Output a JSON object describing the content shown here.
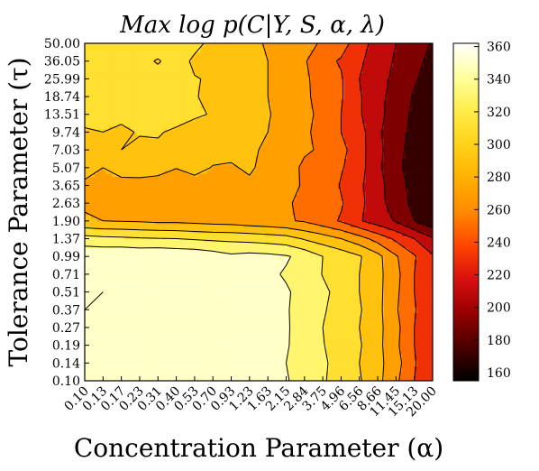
{
  "chart_data": {
    "type": "heatmap",
    "title": "Max log p(C|Y, S, α, λ)",
    "xlabel": "Concentration Parameter (α)",
    "ylabel": "Tolerance Parameter (τ)",
    "x_ticks": [
      "0.10",
      "0.13",
      "0.17",
      "0.23",
      "0.31",
      "0.40",
      "0.53",
      "0.70",
      "0.93",
      "1.23",
      "1.63",
      "2.15",
      "2.84",
      "3.75",
      "4.96",
      "6.56",
      "8.66",
      "11.45",
      "15.13",
      "20.00"
    ],
    "y_ticks": [
      "0.10",
      "0.14",
      "0.19",
      "0.27",
      "0.37",
      "0.51",
      "0.71",
      "0.99",
      "1.37",
      "1.90",
      "2.63",
      "3.65",
      "5.07",
      "7.03",
      "9.74",
      "13.51",
      "18.74",
      "25.99",
      "36.05",
      "50.00"
    ],
    "values": [
      [
        360,
        354,
        356,
        356,
        357,
        356,
        357,
        350,
        348,
        346,
        345,
        341,
        335,
        322,
        312,
        302,
        286,
        264,
        240,
        222
      ],
      [
        357,
        358,
        355,
        355,
        358,
        358,
        356,
        348,
        347,
        345,
        344,
        340,
        332,
        324,
        310,
        300,
        286,
        268,
        242,
        222
      ],
      [
        360,
        358,
        357,
        357,
        356,
        353,
        353,
        349,
        350,
        346,
        343,
        341,
        335,
        321,
        311,
        302,
        286,
        264,
        240,
        222
      ],
      [
        354,
        358,
        360,
        357,
        355,
        357,
        353,
        348,
        346,
        345,
        345,
        341,
        336,
        320,
        310,
        300,
        286,
        266,
        240,
        222
      ],
      [
        360,
        356,
        356,
        355,
        359,
        357,
        357,
        349,
        346,
        347,
        346,
        341,
        335,
        322,
        312,
        302,
        286,
        262,
        242,
        222
      ],
      [
        358,
        360,
        356,
        358,
        356,
        354,
        355,
        349,
        346,
        346,
        344,
        342,
        334,
        325,
        312,
        300,
        286,
        264,
        240,
        222
      ],
      [
        360,
        355,
        357,
        358,
        354,
        358,
        355,
        348,
        344,
        345,
        344,
        338,
        336,
        319,
        310,
        300,
        286,
        266,
        240,
        222
      ],
      [
        357,
        357,
        358,
        356,
        358,
        356,
        355,
        350,
        344,
        347,
        345,
        342,
        334,
        320,
        312,
        302,
        286,
        262,
        242,
        222
      ],
      [
        328,
        325,
        324,
        322,
        321,
        320,
        318,
        316,
        315,
        313,
        311,
        308,
        298,
        290,
        280,
        268,
        252,
        236,
        220,
        202
      ],
      [
        282,
        280,
        279,
        278,
        276,
        276,
        274,
        272,
        271,
        268,
        265,
        262,
        258,
        248,
        238,
        222,
        210,
        198,
        180,
        166
      ],
      [
        278,
        271,
        269,
        262,
        268,
        270,
        273,
        270,
        276,
        274,
        272,
        262,
        256,
        254,
        242,
        226,
        206,
        192,
        174,
        165
      ],
      [
        277,
        274,
        270,
        274,
        274,
        263,
        272,
        277,
        270,
        276,
        271,
        266,
        258,
        258,
        238,
        224,
        206,
        190,
        172,
        164
      ],
      [
        286,
        280,
        292,
        288,
        285,
        281,
        286,
        279,
        278,
        283,
        273,
        267,
        257,
        247,
        242,
        228,
        204,
        186,
        170,
        162
      ],
      [
        290,
        294,
        300,
        290,
        298,
        292,
        288,
        287,
        285,
        283,
        277,
        269,
        262,
        258,
        246,
        228,
        205,
        188,
        170,
        162
      ],
      [
        298,
        300,
        293,
        303,
        301,
        298,
        288,
        289,
        296,
        288,
        280,
        268,
        262,
        256,
        240,
        228,
        204,
        186,
        176,
        164
      ],
      [
        306,
        305,
        309,
        306,
        300,
        305,
        304,
        298,
        288,
        285,
        282,
        270,
        264,
        256,
        240,
        222,
        206,
        190,
        176,
        165
      ],
      [
        309,
        308,
        307,
        309,
        308,
        302,
        302,
        292,
        296,
        295,
        280,
        274,
        264,
        252,
        242,
        222,
        206,
        192,
        178,
        168
      ],
      [
        311,
        310,
        301,
        304,
        309,
        308,
        301,
        298,
        292,
        288,
        280,
        270,
        264,
        250,
        242,
        220,
        206,
        196,
        182,
        172
      ],
      [
        310,
        304,
        309,
        307,
        298,
        310,
        296,
        296,
        292,
        286,
        280,
        270,
        262,
        246,
        238,
        224,
        208,
        198,
        186,
        174
      ],
      [
        301,
        315,
        313,
        314,
        313,
        313,
        306,
        294,
        289,
        285,
        278,
        270,
        265,
        258,
        248,
        230,
        210,
        200,
        190,
        178
      ]
    ],
    "levels": [
      160,
      180,
      200,
      220,
      240,
      260,
      280,
      300,
      320,
      340,
      360
    ],
    "colorbar_ticks": [
      "160",
      "180",
      "200",
      "220",
      "240",
      "260",
      "280",
      "300",
      "320",
      "340",
      "360"
    ],
    "colorbar_range": [
      155,
      362
    ],
    "colormap": [
      "#000000",
      "#4a0000",
      "#960000",
      "#d81010",
      "#ff4400",
      "#ff8a00",
      "#ffb000",
      "#ffd21a",
      "#ffec48",
      "#ffff9e",
      "#ffffff"
    ]
  }
}
